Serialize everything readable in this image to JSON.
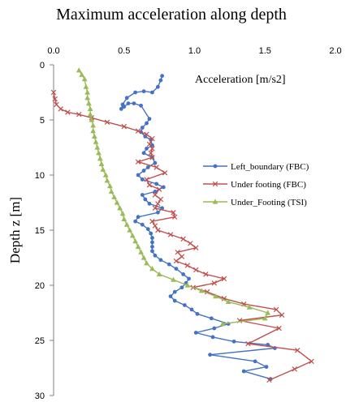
{
  "chart_data": {
    "type": "line",
    "title": "Maximum acceleration along depth",
    "xlabel": "Acceleration [m/s2]",
    "ylabel": "Depth z [m]",
    "xlim": [
      0.0,
      2.0
    ],
    "ylim": [
      0,
      30
    ],
    "y_inverted": true,
    "x_ticks": [
      "0.0",
      "0.5",
      "1.0",
      "1.5",
      "2.0"
    ],
    "x_tick_values": [
      0.0,
      0.5,
      1.0,
      1.5,
      2.0
    ],
    "y_ticks": [
      "0",
      "5",
      "10",
      "15",
      "20",
      "25",
      "30"
    ],
    "y_tick_values": [
      0,
      5,
      10,
      15,
      20,
      25,
      30
    ],
    "x_axis_position": "top",
    "grid": false,
    "legend_position": "right",
    "series": [
      {
        "name": "Left_boundary (FBC)",
        "color": "#4472C4",
        "marker": "circle",
        "x": [
          0.77,
          0.76,
          0.74,
          0.7,
          0.64,
          0.58,
          0.52,
          0.49,
          0.48,
          0.5,
          0.53,
          0.57,
          0.62,
          0.68,
          0.66,
          0.63,
          0.62,
          0.65,
          0.69,
          0.7,
          0.66,
          0.64,
          0.7,
          0.72,
          0.67,
          0.64,
          0.6,
          0.63,
          0.73,
          0.78,
          0.72,
          0.63,
          0.65,
          0.68,
          0.77,
          0.74,
          0.6,
          0.58,
          0.63,
          0.67,
          0.69,
          0.7,
          0.7,
          0.7,
          0.7,
          0.72,
          0.76,
          0.82,
          0.87,
          0.92,
          0.96,
          0.94,
          0.91,
          0.86,
          0.83,
          0.86,
          0.93,
          0.98,
          1.02,
          1.12,
          1.24,
          1.14,
          1.01,
          1.13,
          1.28,
          1.52,
          1.57,
          1.11,
          1.43,
          1.51,
          1.35,
          1.54
        ],
        "y": [
          1.0,
          1.4,
          2.0,
          2.5,
          2.4,
          2.5,
          3.0,
          3.6,
          4.0,
          3.8,
          3.5,
          3.5,
          3.7,
          4.9,
          5.3,
          5.7,
          6.1,
          6.5,
          6.8,
          7.3,
          7.6,
          8.0,
          8.4,
          8.9,
          9.3,
          9.6,
          10.0,
          10.4,
          10.8,
          11.1,
          11.5,
          11.8,
          12.2,
          12.6,
          13.0,
          13.4,
          13.8,
          14.2,
          14.5,
          14.9,
          15.3,
          15.7,
          16.1,
          16.5,
          16.9,
          17.3,
          17.7,
          18.1,
          18.5,
          19.0,
          19.4,
          19.8,
          20.2,
          20.6,
          21.0,
          21.4,
          21.8,
          22.2,
          22.6,
          23.0,
          23.5,
          23.9,
          24.3,
          24.7,
          25.1,
          25.4,
          25.7,
          26.3,
          26.9,
          27.4,
          27.8,
          28.5
        ]
      },
      {
        "name": "Under footing (FBC)",
        "color": "#C0504D",
        "marker": "x",
        "x": [
          0.0,
          0.01,
          0.02,
          0.05,
          0.1,
          0.18,
          0.27,
          0.38,
          0.5,
          0.6,
          0.66,
          0.7,
          0.68,
          0.7,
          0.69,
          0.7,
          0.6,
          0.73,
          0.79,
          0.66,
          0.68,
          0.75,
          0.72,
          0.76,
          0.74,
          0.72,
          0.85,
          0.86,
          0.7,
          0.72,
          0.74,
          0.83,
          0.92,
          0.97,
          1.01,
          0.88,
          0.91,
          0.87,
          0.95,
          1.01,
          1.08,
          1.21,
          1.14,
          0.99,
          1.09,
          1.21,
          1.35,
          1.58,
          1.62,
          1.32,
          1.6,
          1.38,
          1.73,
          1.83,
          1.71,
          1.53
        ],
        "y": [
          2.5,
          3.1,
          3.6,
          4.0,
          4.3,
          4.5,
          4.8,
          5.2,
          5.6,
          6.0,
          6.3,
          6.7,
          7.2,
          7.6,
          8.0,
          8.4,
          8.8,
          9.3,
          9.8,
          10.4,
          10.9,
          11.3,
          11.8,
          12.2,
          12.6,
          13.0,
          13.4,
          13.8,
          14.2,
          14.6,
          15.0,
          15.4,
          15.8,
          16.2,
          16.6,
          17.0,
          17.4,
          17.8,
          18.2,
          18.6,
          19.0,
          19.4,
          19.8,
          20.2,
          20.6,
          21.2,
          21.7,
          22.2,
          22.7,
          23.2,
          23.9,
          25.3,
          25.9,
          26.9,
          27.6,
          28.6
        ]
      },
      {
        "name": "Under_Footing (TSI)",
        "color": "#9BBB59",
        "marker": "triangle",
        "x": [
          0.18,
          0.2,
          0.22,
          0.23,
          0.24,
          0.24,
          0.25,
          0.26,
          0.26,
          0.27,
          0.28,
          0.28,
          0.29,
          0.3,
          0.31,
          0.32,
          0.33,
          0.34,
          0.35,
          0.37,
          0.38,
          0.4,
          0.41,
          0.43,
          0.45,
          0.47,
          0.49,
          0.5,
          0.52,
          0.54,
          0.56,
          0.58,
          0.6,
          0.62,
          0.64,
          0.66,
          0.7,
          0.75,
          0.85,
          0.95,
          1.05,
          1.15,
          1.24,
          1.39,
          1.52,
          1.5,
          1.2
        ],
        "y": [
          0.5,
          0.9,
          1.3,
          2.0,
          2.5,
          3.0,
          3.5,
          4.0,
          4.5,
          5.0,
          5.5,
          6.0,
          6.5,
          7.0,
          7.5,
          8.0,
          8.5,
          9.0,
          9.5,
          10.0,
          10.5,
          11.0,
          11.5,
          12.0,
          12.5,
          13.0,
          13.5,
          14.0,
          14.5,
          15.0,
          15.5,
          16.0,
          16.5,
          17.0,
          17.5,
          18.0,
          18.5,
          19.0,
          19.5,
          20.0,
          20.5,
          21.0,
          21.5,
          22.0,
          22.5,
          23.0,
          23.5
        ]
      }
    ]
  }
}
